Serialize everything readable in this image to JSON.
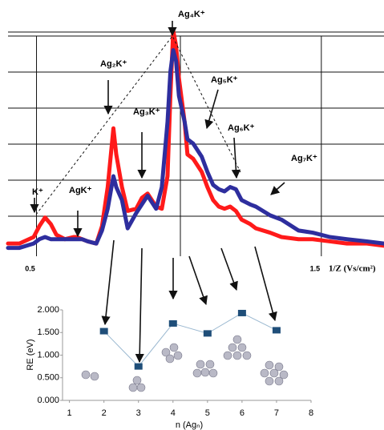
{
  "chart_data": [
    {
      "type": "line",
      "x": [
        0.4,
        0.44,
        0.49,
        0.51,
        0.53,
        0.55,
        0.57,
        0.6,
        0.63,
        0.64,
        0.66,
        0.68,
        0.71,
        0.73,
        0.75,
        0.77,
        0.78,
        0.8,
        0.82,
        0.85,
        0.87,
        0.89,
        0.92,
        0.94,
        0.96,
        0.97,
        0.98,
        0.99,
        1.0,
        1.02,
        1.03,
        1.05,
        1.08,
        1.1,
        1.12,
        1.14,
        1.16,
        1.18,
        1.2,
        1.22,
        1.25,
        1.27,
        1.32,
        1.36,
        1.42,
        1.47,
        1.53,
        1.59,
        1.66,
        1.72
      ],
      "series": [
        {
          "color": "#ff1a1a",
          "values": [
            4,
            4,
            7,
            12,
            16,
            13,
            8,
            6,
            7,
            7,
            6,
            5,
            4,
            12,
            30,
            57,
            45,
            30,
            19,
            20,
            25,
            27,
            21,
            20,
            35,
            72,
            102,
            95,
            80,
            60,
            45,
            43,
            37,
            30,
            24,
            21,
            20,
            21,
            19,
            15,
            13,
            11,
            9,
            7,
            6,
            6,
            5,
            4,
            4,
            3
          ]
        },
        {
          "color": "#2e2e9e",
          "values": [
            2,
            2,
            4,
            6,
            7,
            6,
            6,
            6,
            6,
            6,
            6,
            5,
            4,
            10,
            20,
            35,
            30,
            24,
            11,
            18,
            22,
            26,
            20,
            30,
            60,
            83,
            93,
            88,
            72,
            60,
            52,
            50,
            44,
            37,
            31,
            29,
            28,
            30,
            29,
            24,
            22,
            21,
            17,
            15,
            10,
            9,
            7,
            6,
            5,
            4
          ]
        }
      ],
      "xlim": [
        0.4,
        1.72
      ],
      "xticks": [
        0.5,
        1.5
      ],
      "ylim": [
        0,
        105
      ],
      "x_label": "1/Z (Vs/cm²)",
      "annotations": [
        "Ag₄K⁺",
        "Ag₂K⁺",
        "Ag₃K⁺",
        "Ag₅K⁺",
        "Ag₆K⁺",
        "Ag₇K⁺",
        "AgK⁺",
        "K⁺"
      ]
    },
    {
      "type": "line",
      "markers": "square",
      "color": "#1f4e79",
      "line_color": "#9ab8d0",
      "x": [
        2,
        3,
        4,
        5,
        6,
        7
      ],
      "values": [
        1.53,
        0.75,
        1.7,
        1.48,
        1.93,
        1.55
      ],
      "xlim": [
        0.8,
        8
      ],
      "xticks": [
        1,
        2,
        3,
        4,
        5,
        6,
        7,
        8
      ],
      "ylim": [
        0,
        2
      ],
      "yticks": [
        {
          "value": 0,
          "label": "0.000"
        },
        {
          "value": 0.5,
          "label": "0.500"
        },
        {
          "value": 1,
          "label": "1.000"
        },
        {
          "value": 1.5,
          "label": "1.500"
        },
        {
          "value": 2,
          "label": "2.000"
        }
      ],
      "x_label": "n (Agₙ)",
      "y_label": "RE (eV)"
    }
  ]
}
